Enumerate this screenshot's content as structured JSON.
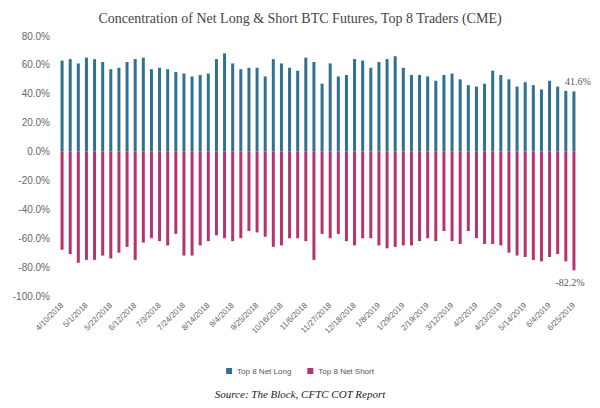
{
  "chart_data": {
    "type": "bar",
    "title": "Concentration of Net Long & Short BTC Futures, Top 8 Traders (CME)",
    "source": "Source: The Block, CFTC COT Report",
    "categories": [
      "4/10/2018",
      null,
      null,
      "5/1/2018",
      null,
      null,
      "5/22/2018",
      null,
      null,
      "6/12/2018",
      null,
      null,
      "7/3/2018",
      null,
      null,
      "7/24/2018",
      null,
      null,
      "8/14/2018",
      null,
      null,
      "9/4/2018",
      null,
      null,
      "9/25/2018",
      null,
      null,
      "10/16/2018",
      null,
      null,
      "11/6/2018",
      null,
      null,
      "11/27/2018",
      null,
      null,
      "12/18/2018",
      null,
      null,
      "1/8/2019",
      null,
      null,
      "1/29/2019",
      null,
      null,
      "2/19/2019",
      null,
      null,
      "3/12/2019",
      null,
      null,
      "4/2/2019",
      null,
      null,
      "4/23/2019",
      null,
      null,
      "5/14/2019",
      null,
      null,
      "6/4/2019",
      null,
      null,
      "6/25/2019"
    ],
    "series": [
      {
        "name": "Top 8 Net Long",
        "color": "#2f7191",
        "values": [
          63,
          64,
          61,
          65,
          64,
          62,
          57,
          58,
          62,
          64,
          65,
          57,
          58,
          57,
          55,
          54,
          52,
          53,
          54,
          64,
          68,
          61,
          57,
          58,
          58,
          52,
          64,
          61,
          58,
          56,
          65,
          62,
          47,
          61,
          52,
          53,
          64,
          63,
          58,
          62,
          64,
          66,
          58,
          53,
          53,
          52,
          49,
          53,
          54,
          50,
          46,
          45,
          47,
          56,
          53,
          50,
          45,
          48,
          46,
          43,
          49,
          45,
          42,
          41.6
        ]
      },
      {
        "name": "Top 8 Net Short",
        "color": "#b5336f",
        "values": [
          -68,
          -71,
          -77,
          -75,
          -75,
          -72,
          -74,
          -70,
          -66,
          -75,
          -63,
          -60,
          -62,
          -65,
          -57,
          -72,
          -72,
          -65,
          -62,
          -58,
          -60,
          -62,
          -60,
          -55,
          -56,
          -59,
          -66,
          -65,
          -60,
          -60,
          -62,
          -75,
          -57,
          -60,
          -57,
          -62,
          -65,
          -60,
          -60,
          -65,
          -67,
          -66,
          -65,
          -65,
          -62,
          -60,
          -62,
          -55,
          -62,
          -64,
          -55,
          -60,
          -64,
          -64,
          -65,
          -70,
          -72,
          -73,
          -75,
          -76,
          -73,
          -71,
          -76,
          -82.2
        ]
      }
    ],
    "annotations": [
      {
        "text": "41.6%",
        "category": "6/25/2019",
        "series": "Top 8 Net Long",
        "value": 41.6
      },
      {
        "text": "-82.2%",
        "category": "6/25/2019",
        "series": "Top 8 Net Short",
        "value": -82.2
      }
    ],
    "ylim": [
      -100,
      80
    ],
    "yticks": [
      {
        "value": -100,
        "label": "-100.0%"
      },
      {
        "value": -80,
        "label": "-80.0%"
      },
      {
        "value": -60,
        "label": "-60.0%"
      },
      {
        "value": -40,
        "label": "-40.0%"
      },
      {
        "value": -20,
        "label": "-20.0%"
      },
      {
        "value": 0,
        "label": "0.0%"
      },
      {
        "value": 20,
        "label": "20.0%"
      },
      {
        "value": 40,
        "label": "40.0%"
      },
      {
        "value": 60,
        "label": "60.0%"
      },
      {
        "value": 80,
        "label": "80.0%"
      }
    ],
    "grid": false,
    "legend": "bottom"
  }
}
